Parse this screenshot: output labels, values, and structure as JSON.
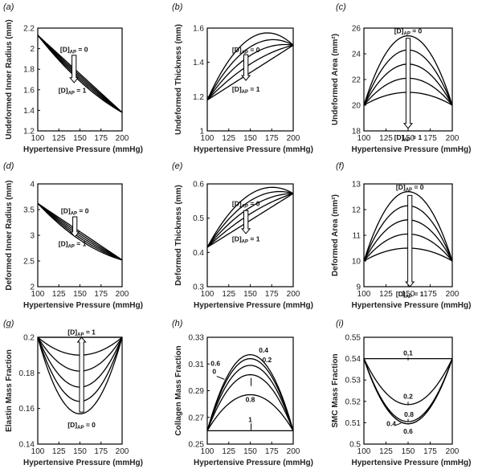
{
  "figure": {
    "x_label": "Hypertensive  Pressure (mmHg)"
  },
  "chart_data": [
    {
      "id": "a",
      "type": "line",
      "label": "(a)",
      "ylabel": "Undeformed  Inner Radius  (mm)",
      "xlim": [
        100,
        200
      ],
      "ylim": [
        1.2,
        2.2
      ],
      "xticks": [
        100,
        125,
        150,
        175,
        200
      ],
      "yticks": [
        1.2,
        1.4,
        1.6,
        1.8,
        2,
        2.2
      ],
      "series_rule": "endpoints (100, 2.13) and (200, 1.38); family of 5 curves with midpoint offsets 0 to -0.07",
      "endpoints": [
        2.13,
        1.38
      ],
      "mid_offsets": [
        0,
        -0.018,
        -0.036,
        -0.054,
        -0.072
      ],
      "curve_shape": "sag",
      "annotations": [
        {
          "text": "[D]",
          "sub": "AP",
          "tail": " = 0"
        },
        {
          "text": "[D]",
          "sub": "AP",
          "tail": " = 1"
        }
      ]
    },
    {
      "id": "b",
      "type": "line",
      "label": "(b)",
      "ylabel": "Undeformed  Thickness  (mm)",
      "xlim": [
        100,
        200
      ],
      "ylim": [
        1,
        1.6
      ],
      "xticks": [
        100,
        125,
        150,
        175,
        200
      ],
      "yticks": [
        1,
        1.2,
        1.4,
        1.6
      ],
      "endpoints": [
        1.18,
        1.5
      ],
      "peak": {
        "x": 175,
        "y": 1.57
      },
      "levels": [
        0,
        0.25,
        0.5,
        0.75,
        1
      ],
      "curve_shape": "skewed",
      "annotations": [
        {
          "text": "[D]",
          "sub": "AP",
          "tail": " = 0"
        },
        {
          "text": "[D]",
          "sub": "AP",
          "tail": " = 1"
        }
      ]
    },
    {
      "id": "c",
      "type": "line",
      "label": "(c)",
      "ylabel": "Undeformed  Area  (mm²)",
      "xlim": [
        100,
        200
      ],
      "ylim": [
        18,
        26
      ],
      "xticks": [
        100,
        125,
        150,
        175,
        200
      ],
      "yticks": [
        18,
        20,
        22,
        24,
        26
      ],
      "endpoints": [
        20,
        20
      ],
      "peaks": [
        25.4,
        24.3,
        23.2,
        22.1,
        21.0
      ],
      "curve_shape": "parabola",
      "annotations": [
        {
          "text": "[D]",
          "sub": "AP",
          "tail": " = 0"
        },
        {
          "text": "[D]",
          "sub": "AP",
          "tail": " = 1"
        }
      ]
    },
    {
      "id": "d",
      "type": "line",
      "label": "(d)",
      "ylabel": "Deformed  Inner Radius  (mm)",
      "xlim": [
        100,
        200
      ],
      "ylim": [
        2,
        4
      ],
      "xticks": [
        100,
        125,
        150,
        175,
        200
      ],
      "yticks": [
        2,
        2.5,
        3,
        3.5,
        4
      ],
      "endpoints": [
        3.62,
        2.52
      ],
      "mid_offsets": [
        0,
        -0.04,
        -0.08,
        -0.12,
        -0.16
      ],
      "curve_shape": "sag",
      "annotations": [
        {
          "text": "[D]",
          "sub": "AP",
          "tail": " = 0"
        },
        {
          "text": "[D]",
          "sub": "AP",
          "tail": " = 1"
        }
      ]
    },
    {
      "id": "e",
      "type": "line",
      "label": "(e)",
      "ylabel": "Deformed  Thickness  (mm)",
      "xlim": [
        100,
        200
      ],
      "ylim": [
        0.3,
        0.6
      ],
      "xticks": [
        100,
        125,
        150,
        175,
        200
      ],
      "yticks": [
        0.3,
        0.4,
        0.5,
        0.6
      ],
      "endpoints": [
        0.415,
        0.572
      ],
      "peak": {
        "x": 175,
        "y": 0.59
      },
      "levels": [
        0,
        0.25,
        0.5,
        0.75,
        1
      ],
      "curve_shape": "skewed",
      "annotations": [
        {
          "text": "[D]",
          "sub": "AP",
          "tail": " = 0"
        },
        {
          "text": "[D]",
          "sub": "AP",
          "tail": " = 1"
        }
      ]
    },
    {
      "id": "f",
      "type": "line",
      "label": "(f)",
      "ylabel": "Deformed  Area  (mm²)",
      "xlim": [
        100,
        200
      ],
      "ylim": [
        9,
        13
      ],
      "xticks": [
        100,
        125,
        150,
        175,
        200
      ],
      "yticks": [
        9,
        10,
        11,
        12,
        13
      ],
      "endpoints": [
        10,
        10
      ],
      "peaks": [
        12.7,
        12.15,
        11.6,
        11.05,
        10.5
      ],
      "curve_shape": "parabola",
      "annotations": [
        {
          "text": "[D]",
          "sub": "AP",
          "tail": " = 0"
        },
        {
          "text": "[D]",
          "sub": "AP",
          "tail": " = 1"
        }
      ]
    },
    {
      "id": "g",
      "type": "line",
      "label": "(g)",
      "ylabel": "Elastin Mass Fraction",
      "xlim": [
        100,
        200
      ],
      "ylim": [
        0.14,
        0.2
      ],
      "xticks": [
        100,
        125,
        150,
        175,
        200
      ],
      "yticks": [
        0.14,
        0.16,
        0.18,
        0.2
      ],
      "endpoints": [
        0.2,
        0.2
      ],
      "peaks": [
        0.2,
        0.19,
        0.181,
        0.172,
        0.164,
        0.157
      ],
      "curve_shape": "parabola",
      "annotations": [
        {
          "text": "[D]",
          "sub": "AP",
          "tail": " = 1"
        },
        {
          "text": "[D]",
          "sub": "AP",
          "tail": " = 0"
        }
      ]
    },
    {
      "id": "h",
      "type": "line",
      "label": "(h)",
      "ylabel": "Collagen Mass Fraction",
      "xlim": [
        100,
        200
      ],
      "ylim": [
        0.25,
        0.33
      ],
      "xticks": [
        100,
        125,
        150,
        175,
        200
      ],
      "yticks": [
        0.25,
        0.27,
        0.29,
        0.31,
        0.33
      ],
      "endpoints": [
        0.26,
        0.26
      ],
      "peaks": [
        0.317,
        0.314,
        0.309,
        0.302,
        0.287,
        0.26
      ],
      "curve_shape": "parabola",
      "annotations": [
        {
          "text": "0.4"
        },
        {
          "text": "0.2"
        },
        {
          "text": "0.6"
        },
        {
          "text": "0"
        },
        {
          "text": "0.8"
        },
        {
          "text": "1"
        }
      ]
    },
    {
      "id": "i",
      "type": "line",
      "label": "(i)",
      "ylabel": "SMC Mass Fraction",
      "xlim": [
        100,
        200
      ],
      "ylim": [
        0.5,
        0.55
      ],
      "xticks": [
        100,
        125,
        150,
        175,
        200
      ],
      "yticks": [
        0.5,
        0.51,
        0.52,
        0.53,
        0.54,
        0.55
      ],
      "endpoints": [
        0.54,
        0.54
      ],
      "peaks": [
        0.54,
        0.5185,
        0.5105,
        0.5095,
        0.5095
      ],
      "curve_shape": "parabola",
      "annotations": [
        {
          "text": "0,1"
        },
        {
          "text": "0.2"
        },
        {
          "text": "0.8"
        },
        {
          "text": "0.4"
        },
        {
          "text": "0.6"
        }
      ]
    }
  ]
}
